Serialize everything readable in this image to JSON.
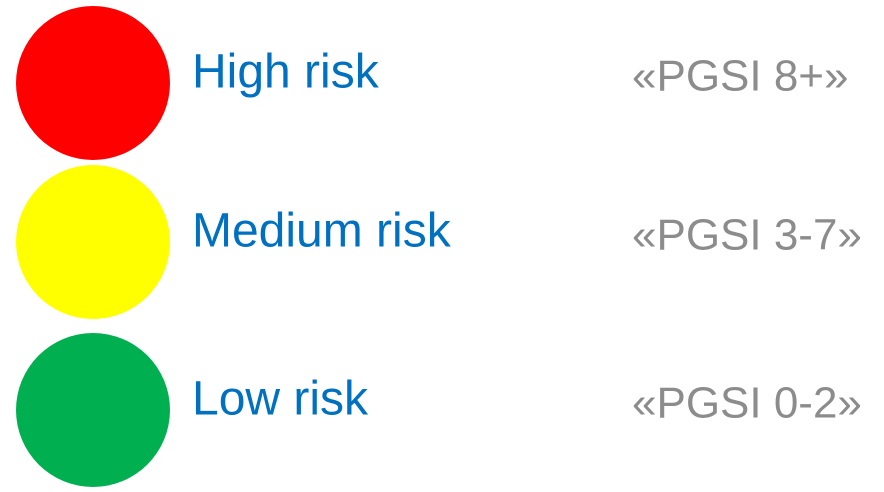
{
  "items": [
    {
      "label": "High risk",
      "range": "«PGSI 8+»",
      "color": "#ff0000"
    },
    {
      "label": "Medium risk",
      "range": "«PGSI 3-7»",
      "color": "#ffff00"
    },
    {
      "label": "Low risk",
      "range": "«PGSI 0-2»",
      "color": "#00b050"
    }
  ]
}
